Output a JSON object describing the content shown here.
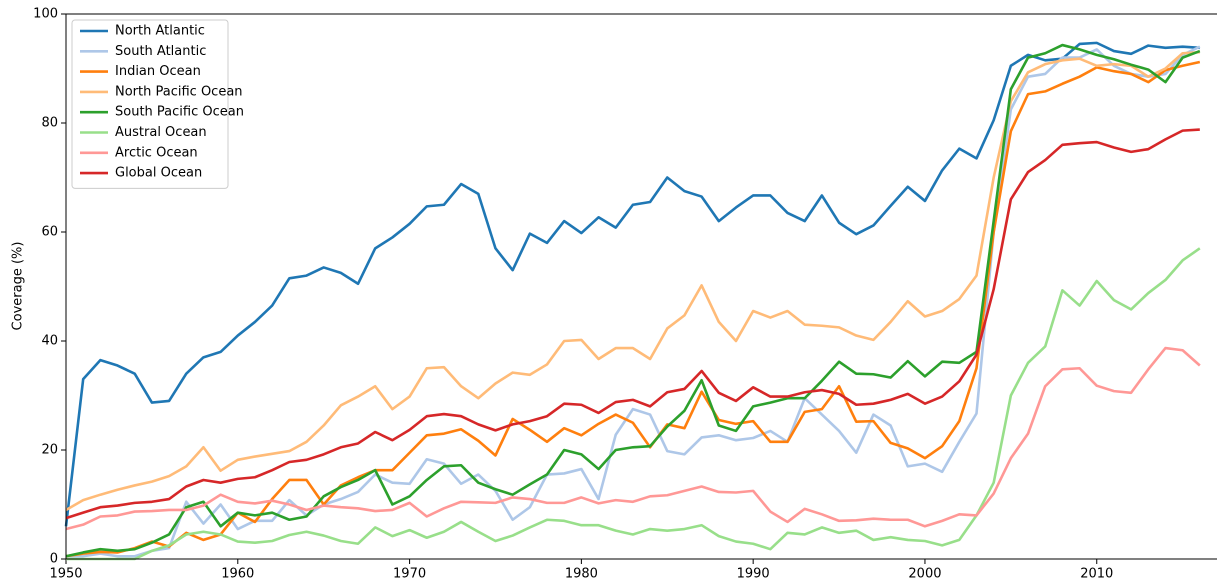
{
  "chart_data": {
    "type": "line",
    "ylabel": "Coverage (%)",
    "x": [
      1950,
      1951,
      1952,
      1953,
      1954,
      1955,
      1956,
      1957,
      1958,
      1959,
      1960,
      1961,
      1962,
      1963,
      1964,
      1965,
      1966,
      1967,
      1968,
      1969,
      1970,
      1971,
      1972,
      1973,
      1974,
      1975,
      1976,
      1977,
      1978,
      1979,
      1980,
      1981,
      1982,
      1983,
      1984,
      1985,
      1986,
      1987,
      1988,
      1989,
      1990,
      1991,
      1992,
      1993,
      1994,
      1995,
      1996,
      1997,
      1998,
      1999,
      2000,
      2001,
      2002,
      2003,
      2004,
      2005,
      2006,
      2007,
      2008,
      2009,
      2010,
      2011,
      2012,
      2013,
      2014,
      2015,
      2016
    ],
    "xlim": [
      1950,
      2017
    ],
    "xticks": [
      1950,
      1960,
      1970,
      1980,
      1990,
      2000,
      2010
    ],
    "ylim": [
      0,
      100
    ],
    "yticks": [
      0,
      20,
      40,
      60,
      80,
      100
    ],
    "legend": "upper left",
    "series": [
      {
        "name": "North Atlantic",
        "color": "#1f77b4",
        "values": [
          6,
          33,
          36.5,
          35.5,
          34,
          28.7,
          29,
          34,
          37,
          38,
          41,
          43.5,
          46.5,
          51.5,
          52,
          53.5,
          52.5,
          50.5,
          57,
          59,
          61.5,
          64.7,
          65,
          68.8,
          67,
          57,
          53,
          59.7,
          58,
          62,
          59.8,
          62.7,
          60.8,
          65,
          65.5,
          70,
          67.5,
          66.5,
          62,
          64.5,
          66.7,
          66.7,
          63.5,
          62,
          66.7,
          61.7,
          59.6,
          61.2,
          64.8,
          68.3,
          65.7,
          71.3,
          75.3,
          73.5,
          80.5,
          90.5,
          92.5,
          91.5,
          91.8,
          94.5,
          94.7,
          93.2,
          92.7,
          94.2,
          93.8,
          94,
          93.8
        ]
      },
      {
        "name": "South Atlantic",
        "color": "#aec7e8",
        "values": [
          0.5,
          0.5,
          1,
          0.5,
          0.5,
          1.5,
          2,
          10.5,
          6.5,
          10,
          5.5,
          7,
          7,
          10.8,
          8,
          10,
          11,
          12.3,
          15.5,
          14,
          13.8,
          18.3,
          17.5,
          13.8,
          15.5,
          12.5,
          7.2,
          9.5,
          15.5,
          15.7,
          16.5,
          11,
          22.8,
          27.5,
          26.5,
          19.8,
          19.2,
          22.3,
          22.7,
          21.8,
          22.2,
          23.5,
          21.5,
          29.5,
          26.5,
          23.5,
          19.5,
          26.5,
          24.5,
          17,
          17.5,
          16,
          21.5,
          26.7,
          60,
          82.5,
          88.5,
          89,
          92,
          92,
          93.5,
          90.5,
          89,
          88.5,
          89,
          92.5,
          94
        ]
      },
      {
        "name": "Indian Ocean",
        "color": "#ff7f0e",
        "values": [
          0.5,
          1,
          1.3,
          1.2,
          2,
          3.2,
          2.3,
          4.8,
          3.5,
          4.5,
          8.5,
          6.8,
          11,
          14.5,
          14.5,
          10,
          13.5,
          15,
          16.3,
          16.3,
          19.5,
          22.7,
          23,
          23.8,
          21.7,
          19,
          25.7,
          23.7,
          21.5,
          24,
          22.7,
          24.8,
          26.5,
          25,
          20.5,
          24.7,
          24,
          30.7,
          25.5,
          24.8,
          25.3,
          21.5,
          21.5,
          27,
          27.5,
          31.7,
          25.2,
          25.3,
          21.3,
          20.3,
          18.5,
          20.7,
          25.3,
          35,
          60,
          78.5,
          85.3,
          85.8,
          87.2,
          88.5,
          90.2,
          89.5,
          89,
          87.5,
          89.7,
          90.5,
          91.2
        ]
      },
      {
        "name": "North Pacific Ocean",
        "color": "#ffbb78",
        "values": [
          9,
          10.8,
          11.8,
          12.7,
          13.5,
          14.2,
          15.2,
          17,
          20.5,
          16.2,
          18.2,
          18.8,
          19.3,
          19.8,
          21.5,
          24.5,
          28.2,
          29.8,
          31.7,
          27.5,
          29.8,
          35,
          35.2,
          31.7,
          29.5,
          32.2,
          34.2,
          33.8,
          35.7,
          40,
          40.2,
          36.7,
          38.7,
          38.7,
          36.7,
          42.3,
          44.7,
          50.2,
          43.5,
          40,
          45.5,
          44.3,
          45.5,
          43,
          42.8,
          42.5,
          41,
          40.2,
          43.5,
          47.3,
          44.5,
          45.5,
          47.7,
          52,
          70,
          84,
          89.3,
          90.8,
          91.5,
          91.8,
          90.5,
          90.8,
          90.5,
          88.5,
          90,
          92.8,
          93
        ]
      },
      {
        "name": "South Pacific Ocean",
        "color": "#2ca02c",
        "values": [
          0.5,
          1.2,
          1.8,
          1.5,
          1.8,
          3,
          4.5,
          9.5,
          10.5,
          6,
          8.5,
          8,
          8.5,
          7.2,
          7.8,
          11.5,
          13.2,
          14.5,
          16.3,
          10,
          11.5,
          14.5,
          17,
          17.2,
          14,
          12.8,
          11.8,
          13.7,
          15.5,
          20,
          19.2,
          16.5,
          20,
          20.5,
          20.7,
          24.3,
          27.2,
          32.8,
          24.5,
          23.5,
          28,
          28.7,
          29.5,
          29.5,
          32.7,
          36.2,
          34,
          33.9,
          33.3,
          36.3,
          33.5,
          36.2,
          36,
          38,
          62,
          86.2,
          92,
          92.8,
          94.3,
          93.5,
          92.5,
          91.7,
          90.7,
          89.8,
          87.5,
          92,
          93.2
        ]
      },
      {
        "name": "Austral Ocean",
        "color": "#98df8a",
        "values": [
          0,
          0,
          0,
          0,
          0,
          1.5,
          2.5,
          4.5,
          5,
          4.5,
          3.2,
          3,
          3.3,
          4.4,
          5,
          4.3,
          3.3,
          2.8,
          5.8,
          4.2,
          5.3,
          3.9,
          5,
          6.8,
          5,
          3.3,
          4.3,
          5.8,
          7.2,
          7,
          6.2,
          6.2,
          5.2,
          4.5,
          5.5,
          5.2,
          5.5,
          6.2,
          4.2,
          3.2,
          2.8,
          1.8,
          4.8,
          4.5,
          5.8,
          4.8,
          5.2,
          3.5,
          4,
          3.5,
          3.3,
          2.5,
          3.5,
          8,
          14,
          30,
          36,
          39,
          49.3,
          46.5,
          51,
          47.5,
          45.8,
          48.8,
          51.2,
          54.8,
          57
        ]
      },
      {
        "name": "Arctic Ocean",
        "color": "#ff9896",
        "values": [
          5.5,
          6.3,
          7.8,
          8,
          8.7,
          8.8,
          9,
          9,
          9.8,
          11.8,
          10.5,
          10.2,
          10.7,
          10,
          9,
          9.8,
          9.5,
          9.3,
          8.8,
          9,
          10.3,
          7.8,
          9.3,
          10.5,
          10.4,
          10.3,
          11.3,
          11,
          10.3,
          10.3,
          11.3,
          10.2,
          10.8,
          10.5,
          11.5,
          11.7,
          12.5,
          13.3,
          12.3,
          12.2,
          12.5,
          8.7,
          6.8,
          9.2,
          8.2,
          7,
          7.1,
          7.4,
          7.2,
          7.2,
          6,
          7,
          8.2,
          8,
          12,
          18.5,
          23,
          31.7,
          34.8,
          35,
          31.8,
          30.8,
          30.5,
          34.8,
          38.7,
          38.3,
          35.5
        ]
      },
      {
        "name": "Global Ocean",
        "color": "#d62728",
        "values": [
          7.5,
          8.5,
          9.5,
          9.8,
          10.3,
          10.5,
          11,
          13.3,
          14.5,
          14,
          14.7,
          15,
          16.3,
          17.8,
          18.2,
          19.2,
          20.5,
          21.2,
          23.3,
          21.8,
          23.7,
          26.2,
          26.6,
          26.2,
          24.7,
          23.6,
          24.7,
          25.3,
          26.2,
          28.5,
          28.3,
          26.8,
          28.8,
          29.2,
          28,
          30.6,
          31.2,
          34.5,
          30.5,
          29,
          31.5,
          29.8,
          29.8,
          30.6,
          31,
          30.3,
          28.3,
          28.5,
          29.2,
          30.3,
          28.5,
          29.8,
          32.6,
          37.5,
          49.5,
          66,
          71,
          73.2,
          76,
          76.3,
          76.5,
          75.5,
          74.7,
          75.2,
          77,
          78.6,
          78.8
        ]
      }
    ]
  }
}
